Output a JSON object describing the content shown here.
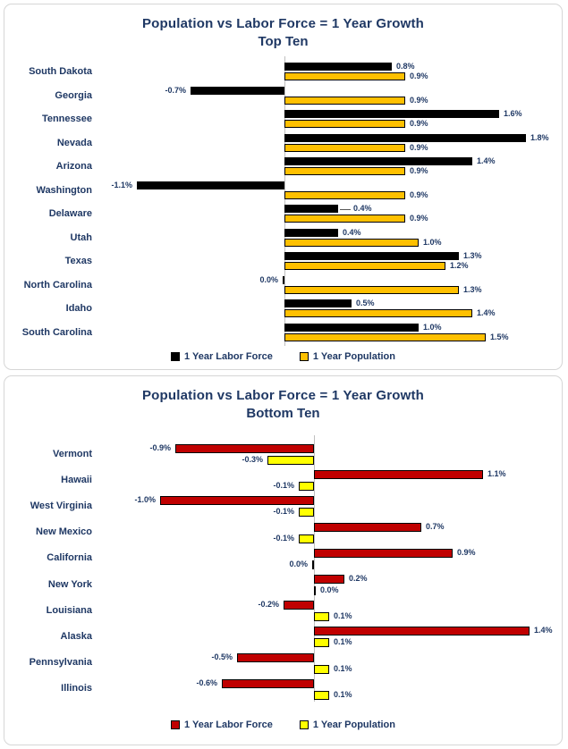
{
  "page": {
    "background": "#FFFFFF",
    "text_color": "#1F3864"
  },
  "chart_data": [
    {
      "type": "bar",
      "orientation": "horizontal-grouped",
      "title": "Population vs Labor Force = 1 Year Growth",
      "subtitle": "Top Ten",
      "value_unit": "%",
      "xlim": [
        -1.4,
        2.0
      ],
      "grid": false,
      "legend_position": "bottom",
      "categories": [
        "South Dakota",
        "Georgia",
        "Tennessee",
        "Nevada",
        "Arizona",
        "Washington",
        "Delaware",
        "Utah",
        "Texas",
        "North Carolina",
        "Idaho",
        "South Carolina"
      ],
      "series": [
        {
          "name": "1 Year Labor Force",
          "color": "#000000",
          "points": [
            {
              "value": 0.8,
              "label": "0.8%"
            },
            {
              "value": -0.7,
              "label": "-0.7%"
            },
            {
              "value": 1.6,
              "label": "1.6%"
            },
            {
              "value": 1.8,
              "label": "1.8%"
            },
            {
              "value": 1.4,
              "label": "1.4%"
            },
            {
              "value": -1.1,
              "label": "-1.1%"
            },
            {
              "value": 0.4,
              "label": "0.4%",
              "leader": true
            },
            {
              "value": 0.4,
              "label": "0.4%"
            },
            {
              "value": 1.3,
              "label": "1.3%"
            },
            {
              "value": 0.0,
              "label": "0.0%",
              "side": "left"
            },
            {
              "value": 0.5,
              "label": "0.5%"
            },
            {
              "value": 1.0,
              "label": "1.0%"
            }
          ]
        },
        {
          "name": "1 Year Population",
          "color": "#FFC000",
          "points": [
            {
              "value": 0.9,
              "label": "0.9%"
            },
            {
              "value": 0.9,
              "label": "0.9%"
            },
            {
              "value": 0.9,
              "label": "0.9%"
            },
            {
              "value": 0.9,
              "label": "0.9%"
            },
            {
              "value": 0.9,
              "label": "0.9%"
            },
            {
              "value": 0.9,
              "label": "0.9%"
            },
            {
              "value": 0.9,
              "label": "0.9%"
            },
            {
              "value": 1.0,
              "label": "1.0%"
            },
            {
              "value": 1.2,
              "label": "1.2%"
            },
            {
              "value": 1.3,
              "label": "1.3%"
            },
            {
              "value": 1.4,
              "label": "1.4%"
            },
            {
              "value": 1.5,
              "label": "1.5%"
            }
          ]
        }
      ]
    },
    {
      "type": "bar",
      "orientation": "horizontal-grouped",
      "title": "Population vs Labor Force = 1 Year Growth",
      "subtitle": "Bottom Ten",
      "value_unit": "%",
      "xlim": [
        -1.2,
        1.6
      ],
      "grid": false,
      "legend_position": "bottom",
      "categories": [
        "Vermont",
        "Hawaii",
        "West Virginia",
        "New Mexico",
        "California",
        "New York",
        "Louisiana",
        "Alaska",
        "Pennsylvania",
        "Illinois"
      ],
      "series": [
        {
          "name": "1 Year Labor Force",
          "color": "#C00000",
          "points": [
            {
              "value": -0.9,
              "label": "-0.9%"
            },
            {
              "value": 1.1,
              "label": "1.1%"
            },
            {
              "value": -1.0,
              "label": "-1.0%"
            },
            {
              "value": 0.7,
              "label": "0.7%"
            },
            {
              "value": 0.9,
              "label": "0.9%"
            },
            {
              "value": 0.2,
              "label": "0.2%"
            },
            {
              "value": -0.2,
              "label": "-0.2%"
            },
            {
              "value": 1.4,
              "label": "1.4%"
            },
            {
              "value": -0.5,
              "label": "-0.5%"
            },
            {
              "value": -0.6,
              "label": "-0.6%"
            }
          ]
        },
        {
          "name": "1 Year Population",
          "color": "#FFFF00",
          "points": [
            {
              "value": -0.3,
              "label": "-0.3%"
            },
            {
              "value": -0.1,
              "label": "-0.1%"
            },
            {
              "value": -0.1,
              "label": "-0.1%"
            },
            {
              "value": -0.1,
              "label": "-0.1%"
            },
            {
              "value": 0.0,
              "label": "0.0%",
              "side": "left"
            },
            {
              "value": 0.0,
              "label": "0.0%",
              "side": "right"
            },
            {
              "value": 0.1,
              "label": "0.1%"
            },
            {
              "value": 0.1,
              "label": "0.1%"
            },
            {
              "value": 0.1,
              "label": "0.1%"
            },
            {
              "value": 0.1,
              "label": "0.1%"
            }
          ]
        }
      ]
    }
  ]
}
